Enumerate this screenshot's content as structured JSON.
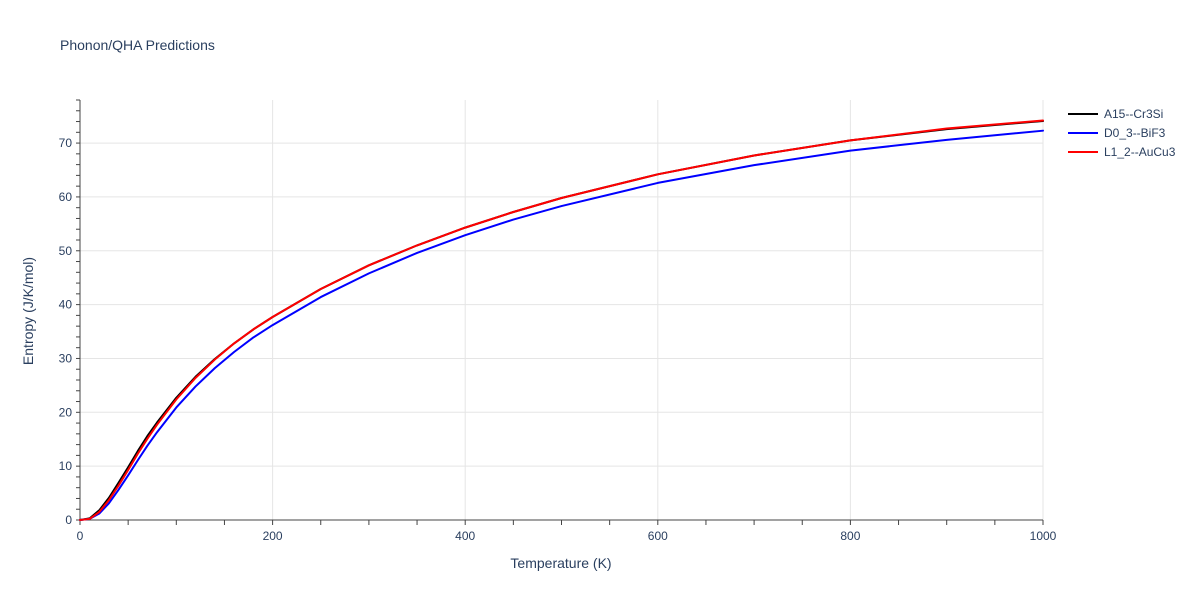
{
  "chart_data": {
    "type": "line",
    "title": "Phonon/QHA Predictions",
    "xlabel": "Temperature (K)",
    "ylabel": "Entropy (J/K/mol)",
    "xlim": [
      0,
      1000
    ],
    "ylim": [
      0,
      78
    ],
    "xticks": [
      0,
      200,
      400,
      600,
      800,
      1000
    ],
    "yticks": [
      0,
      10,
      20,
      30,
      40,
      50,
      60,
      70
    ],
    "grid": true,
    "legend_position": "top-right",
    "series": [
      {
        "name": "A15--Cr3Si",
        "color": "#000000",
        "x": [
          0,
          10,
          20,
          30,
          40,
          50,
          60,
          70,
          80,
          100,
          120,
          140,
          160,
          180,
          200,
          250,
          300,
          350,
          400,
          450,
          500,
          600,
          700,
          800,
          900,
          1000
        ],
        "y": [
          0,
          0.3,
          1.8,
          4.1,
          6.9,
          9.8,
          12.8,
          15.6,
          18.1,
          22.7,
          26.6,
          29.9,
          32.8,
          35.4,
          37.7,
          42.9,
          47.3,
          51.0,
          54.3,
          57.2,
          59.8,
          64.2,
          67.7,
          70.5,
          72.6,
          74.1
        ]
      },
      {
        "name": "D0_3--BiF3",
        "color": "#0000ff",
        "x": [
          0,
          10,
          20,
          30,
          40,
          50,
          60,
          70,
          80,
          100,
          120,
          140,
          160,
          180,
          200,
          250,
          300,
          350,
          400,
          450,
          500,
          600,
          700,
          800,
          900,
          1000
        ],
        "y": [
          0,
          0.2,
          1.2,
          3.1,
          5.6,
          8.3,
          11.1,
          13.8,
          16.3,
          20.9,
          24.8,
          28.2,
          31.2,
          33.9,
          36.2,
          41.4,
          45.8,
          49.6,
          52.9,
          55.8,
          58.3,
          62.6,
          65.9,
          68.6,
          70.6,
          72.3
        ]
      },
      {
        "name": "L1_2--AuCu3",
        "color": "#ff0000",
        "x": [
          0,
          10,
          20,
          30,
          40,
          50,
          60,
          70,
          80,
          100,
          120,
          140,
          160,
          180,
          200,
          250,
          300,
          350,
          400,
          450,
          500,
          600,
          700,
          800,
          900,
          1000
        ],
        "y": [
          0,
          0.2,
          1.5,
          3.7,
          6.4,
          9.3,
          12.3,
          15.1,
          17.7,
          22.4,
          26.4,
          29.8,
          32.8,
          35.4,
          37.7,
          42.9,
          47.3,
          51.0,
          54.3,
          57.2,
          59.8,
          64.2,
          67.7,
          70.5,
          72.7,
          74.2
        ]
      }
    ]
  }
}
